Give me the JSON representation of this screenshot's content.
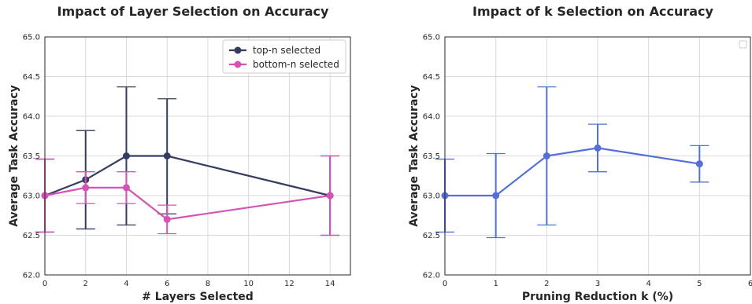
{
  "chart_data": [
    {
      "type": "line",
      "title": "Impact of Layer Selection on Accuracy",
      "xlabel": "# Layers Selected",
      "ylabel": "Average Task Accuracy",
      "xlim": [
        0,
        15
      ],
      "ylim": [
        62.0,
        65.0
      ],
      "xticks": [
        0,
        2,
        4,
        6,
        8,
        10,
        12,
        14
      ],
      "yticks": [
        62.0,
        62.5,
        63.0,
        63.5,
        64.0,
        64.5,
        65.0
      ],
      "grid": true,
      "legend": "top-right",
      "series": [
        {
          "name": "top-n selected",
          "color": "#363c5e",
          "x": [
            0,
            2,
            4,
            6,
            14
          ],
          "y": [
            63.0,
            63.2,
            63.5,
            63.5,
            63.0
          ],
          "err_low": [
            62.54,
            62.58,
            62.63,
            62.77,
            62.5
          ],
          "err_high": [
            63.46,
            63.82,
            64.37,
            64.22,
            63.5
          ]
        },
        {
          "name": "bottom-n selected",
          "color": "#d454b6",
          "x": [
            0,
            2,
            4,
            6,
            14
          ],
          "y": [
            63.0,
            63.1,
            63.1,
            62.7,
            63.0
          ],
          "err_low": [
            62.54,
            62.9,
            62.9,
            62.52,
            62.5
          ],
          "err_high": [
            63.46,
            63.3,
            63.3,
            62.88,
            63.5
          ]
        }
      ]
    },
    {
      "type": "line",
      "title": "Impact of k Selection on Accuracy",
      "xlabel": "Pruning Reduction k (%)",
      "ylabel": "Average Task Accuracy",
      "xlim": [
        0,
        6
      ],
      "ylim": [
        62.0,
        65.0
      ],
      "xticks": [
        0,
        1,
        2,
        3,
        4,
        5,
        6
      ],
      "yticks": [
        62.0,
        62.5,
        63.0,
        63.5,
        64.0,
        64.5,
        65.0
      ],
      "grid": true,
      "legend": "top-right (empty)",
      "series": [
        {
          "color": "#5470d6",
          "x": [
            0,
            1,
            2,
            3,
            5
          ],
          "y": [
            63.0,
            63.0,
            63.5,
            63.6,
            63.4
          ],
          "err_low": [
            62.54,
            62.47,
            62.63,
            63.3,
            63.17
          ],
          "err_high": [
            63.46,
            63.53,
            64.37,
            63.9,
            63.63
          ]
        }
      ]
    }
  ]
}
